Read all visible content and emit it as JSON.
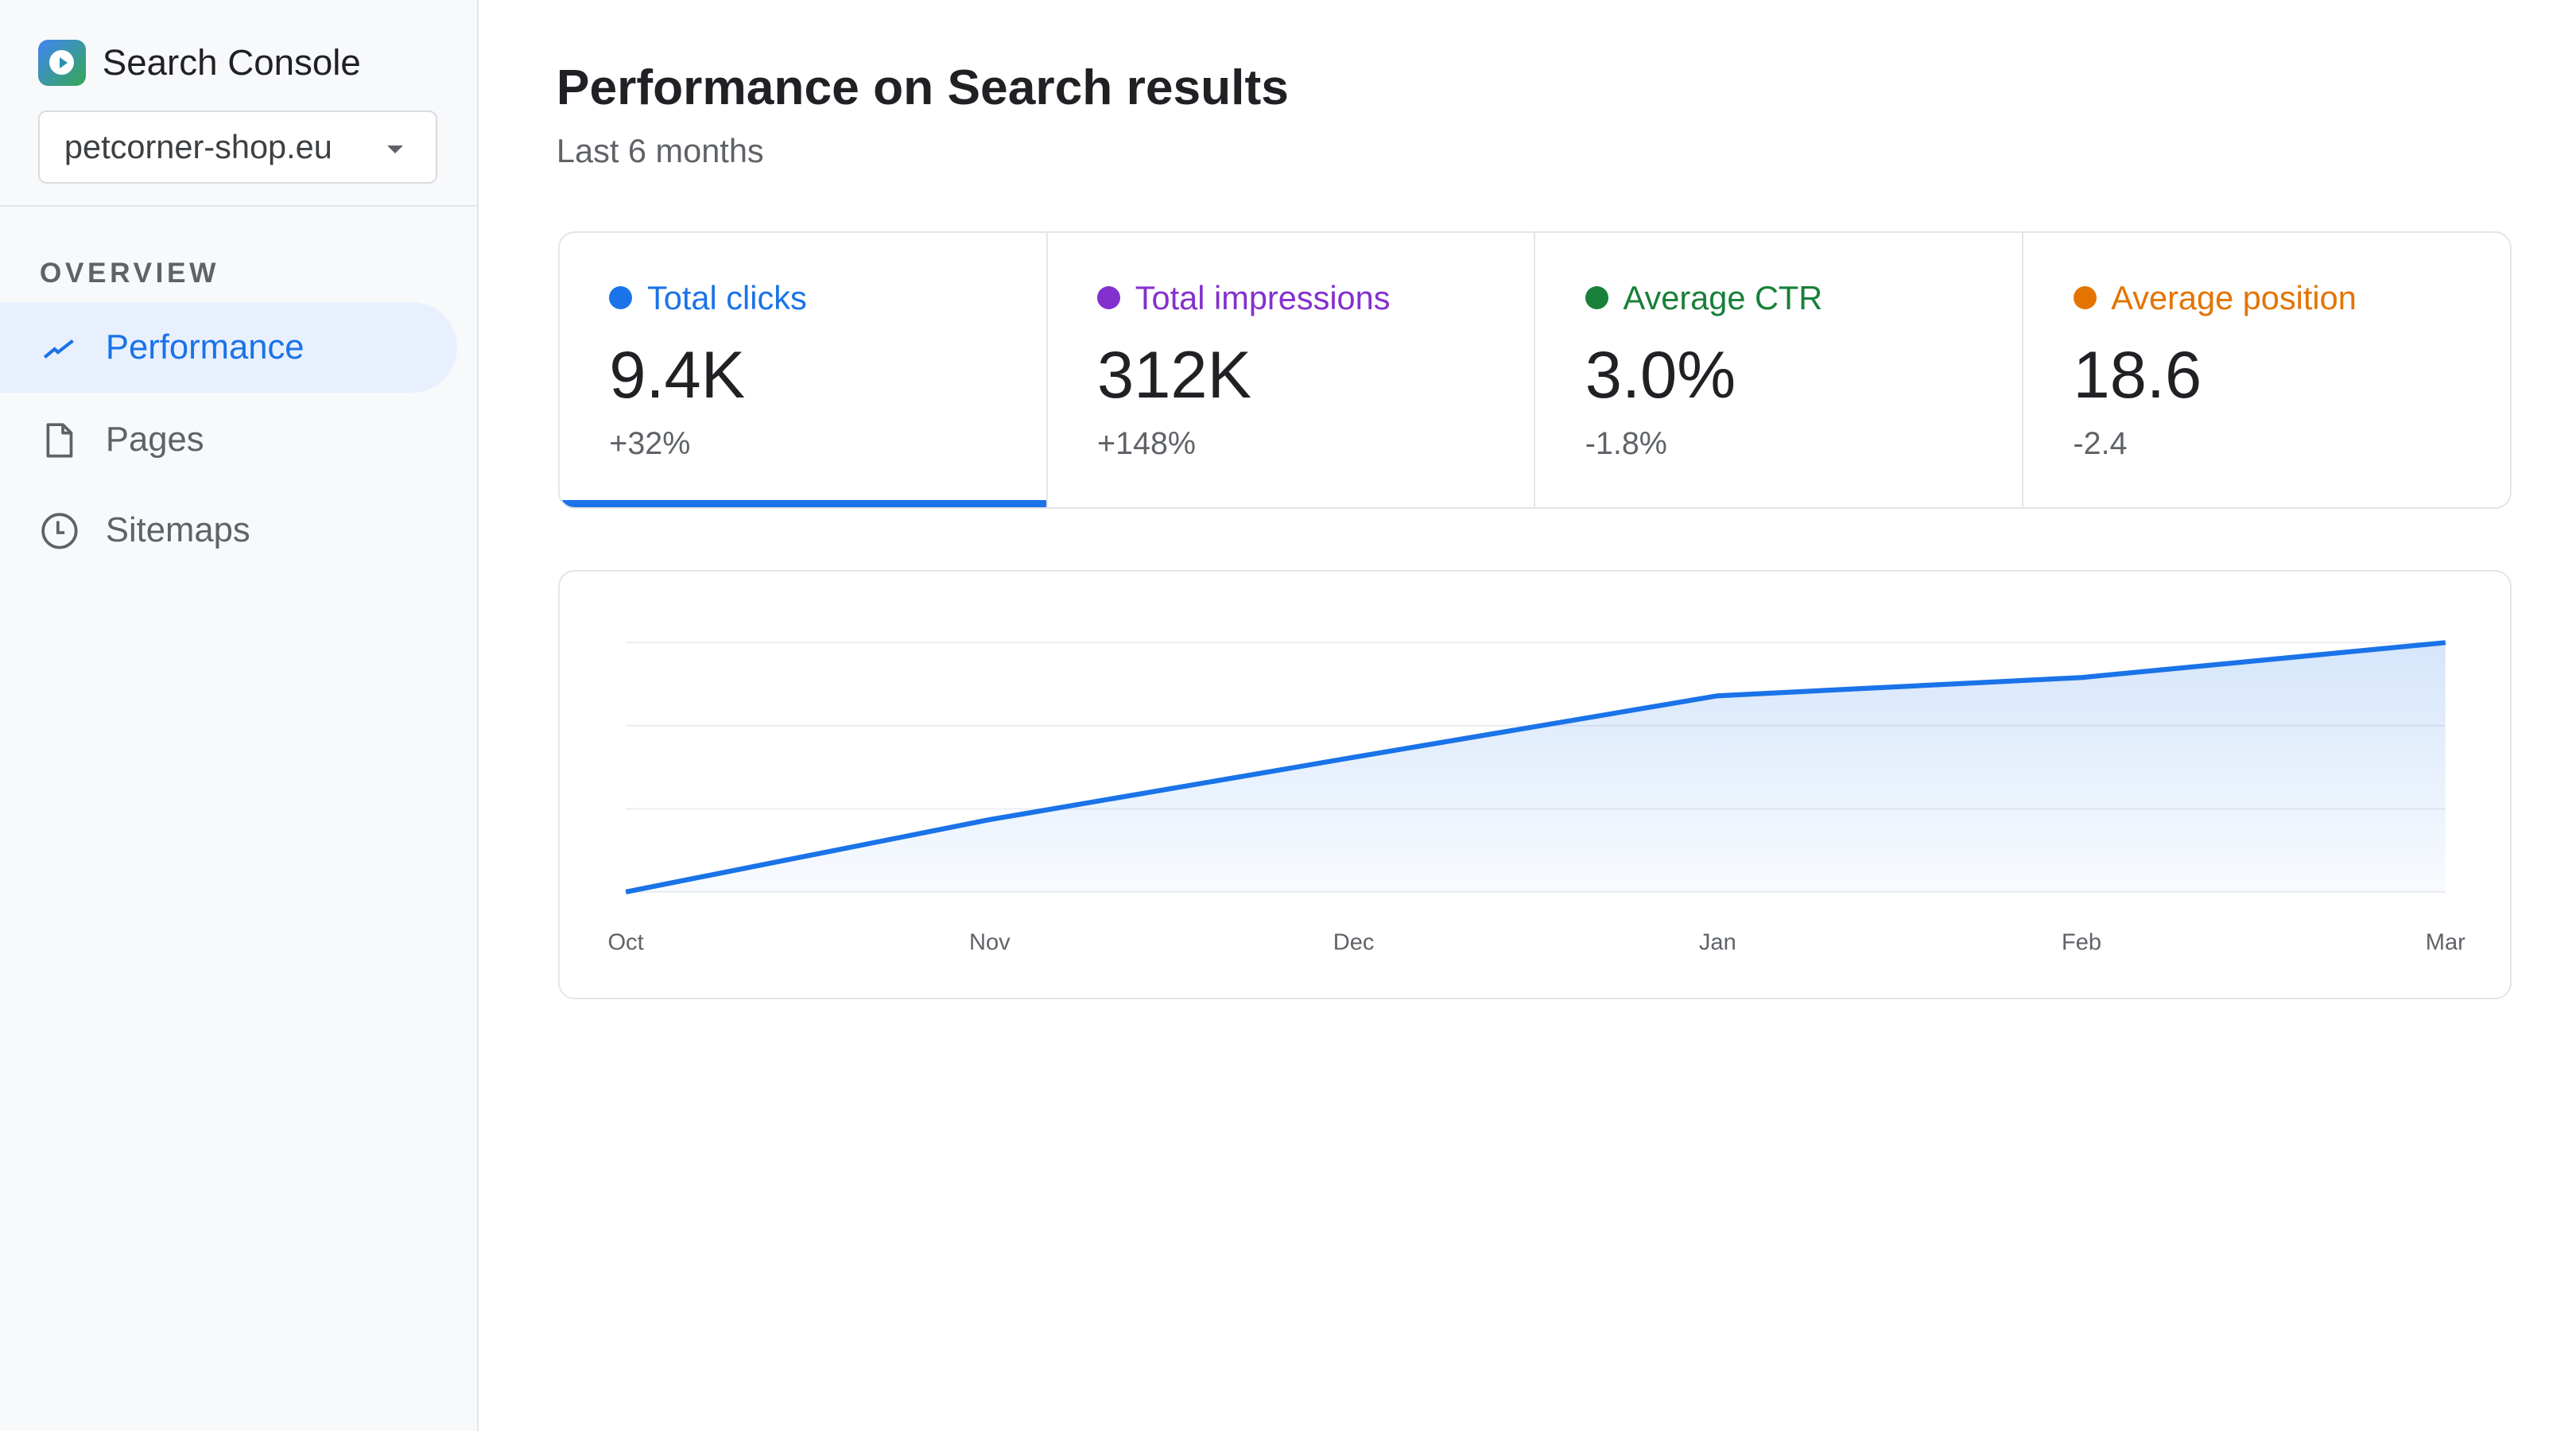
{
  "app": {
    "name": "Search Console",
    "logo_icon": "search-console-logo"
  },
  "property_selector": {
    "value": "petcorner-shop.eu"
  },
  "sidebar": {
    "section": "OVERVIEW",
    "items": [
      {
        "label": "Performance",
        "icon": "trending-up-icon",
        "active": true
      },
      {
        "label": "Pages",
        "icon": "file-icon",
        "active": false
      },
      {
        "label": "Sitemaps",
        "icon": "clock-icon",
        "active": false
      }
    ]
  },
  "header": {
    "title": "Performance on Search results",
    "subtitle": "Last 6 months"
  },
  "metrics": [
    {
      "label": "Total clicks",
      "value": "9.4K",
      "change": "+32%",
      "color": "#1a73e8",
      "active": true
    },
    {
      "label": "Total impressions",
      "value": "312K",
      "change": "+148%",
      "color": "#8430ce",
      "active": false
    },
    {
      "label": "Average CTR",
      "value": "3.0%",
      "change": "-1.8%",
      "color": "#188038",
      "active": false
    },
    {
      "label": "Average position",
      "value": "18.6",
      "change": "-2.4",
      "color": "#e37400",
      "active": false
    }
  ],
  "chart_data": {
    "type": "area",
    "categories": [
      "Oct",
      "Nov",
      "Dec",
      "Jan",
      "Feb",
      "Mar"
    ],
    "values": [
      0,
      0.87,
      1.62,
      2.36,
      2.58,
      3
    ],
    "ylim": [
      0,
      3
    ],
    "grid": true,
    "line_color": "#1a73e8"
  }
}
